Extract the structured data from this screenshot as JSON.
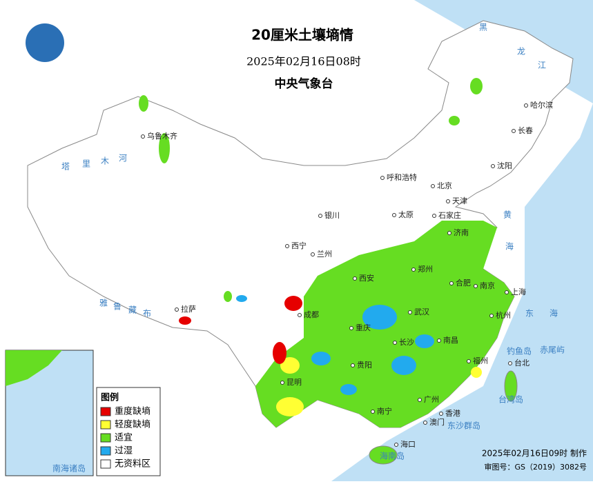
{
  "header": {
    "title": "20厘米土壤墒情",
    "date": "2025年02月16日08时",
    "agency": "中央气象台"
  },
  "legend": {
    "title": "图例",
    "items": [
      {
        "label": "重度缺墒",
        "color": "#e60000"
      },
      {
        "label": "轻度缺墒",
        "color": "#ffff33"
      },
      {
        "label": "适宜",
        "color": "#66dd22"
      },
      {
        "label": "过湿",
        "color": "#22aaee"
      },
      {
        "label": "无资料区",
        "color": "#ffffff"
      }
    ]
  },
  "cities": [
    "哈尔滨",
    "长春",
    "沈阳",
    "乌鲁木齐",
    "呼和浩特",
    "北京",
    "天津",
    "石家庄",
    "太原",
    "银川",
    "济南",
    "西宁",
    "兰州",
    "郑州",
    "西安",
    "合肥",
    "南京",
    "上海",
    "成都",
    "武汉",
    "杭州",
    "拉萨",
    "重庆",
    "长沙",
    "南昌",
    "福州",
    "台北",
    "贵阳",
    "昆明",
    "广州",
    "南宁",
    "香港",
    "澳门",
    "海口"
  ],
  "labels": [
    "黑",
    "龙",
    "江",
    "塔",
    "里",
    "木",
    "河",
    "雅",
    "鲁",
    "藏",
    "布",
    "黄",
    "海",
    "东",
    "海",
    "钓鱼岛",
    "赤尾屿",
    "台湾岛",
    "东沙群岛",
    "海南岛",
    "南海诸岛"
  ],
  "footer": {
    "made": "2025年02月16日09时 制作",
    "approval": "审图号：GS（2019）3082号"
  }
}
